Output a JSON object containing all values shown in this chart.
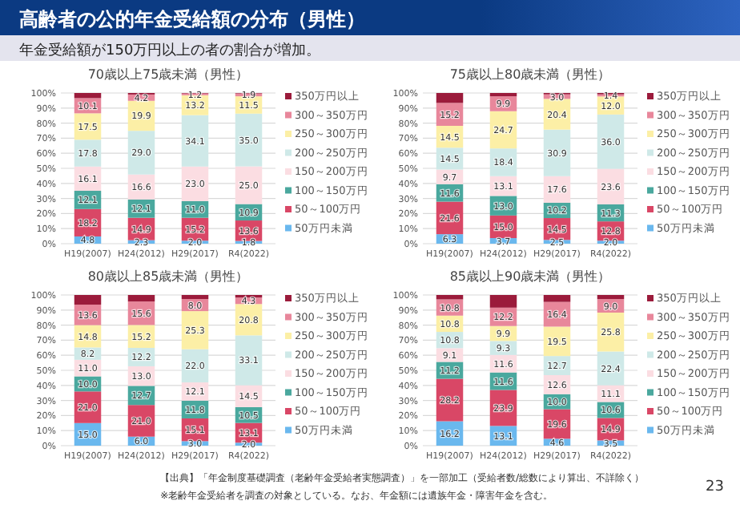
{
  "chart_data": [
    {
      "type": "other",
      "title": "高齢者の公的年金受給額の分布（男性）",
      "subtitle": "年金受給額が150万円以上の者の割合が増加。",
      "annotations": [
        "【出典】「年金制度基礎調査（老齢年金受給者実態調査）」を一部加工（受給者数/総数により算出、不詳除く）",
        "※老齢年金受給者を調査の対象としている。なお、年金額には遺族年金・障害年金を含む。",
        "23"
      ]
    },
    {
      "type": "bar",
      "stacked": true,
      "title": "70歳以上75歳未満（男性）",
      "categories": [
        "H19(2007)",
        "H24(2012)",
        "H29(2017)",
        "R4(2022)"
      ],
      "ylim": [
        0,
        100
      ],
      "yticks": [
        {
          "value": 0,
          "label": "0%"
        },
        {
          "value": 10,
          "label": "10%"
        },
        {
          "value": 20,
          "label": "20%"
        },
        {
          "value": 30,
          "label": "30%"
        },
        {
          "value": 40,
          "label": "40%"
        },
        {
          "value": 50,
          "label": "50%"
        },
        {
          "value": 60,
          "label": "60%"
        },
        {
          "value": 70,
          "label": "70%"
        },
        {
          "value": 80,
          "label": "80%"
        },
        {
          "value": 90,
          "label": "90%"
        },
        {
          "value": 100,
          "label": "100%"
        }
      ],
      "grid": "y",
      "legend": "right",
      "series": [
        {
          "name": "50万円未満",
          "color": "#6ab8ee",
          "values": [
            4.8,
            2.3,
            2.0,
            1.8
          ],
          "value_labels": [
            "4.8",
            "2.3",
            "2.0",
            "1.8"
          ]
        },
        {
          "name": "50～100万円",
          "color": "#d94766",
          "values": [
            18.2,
            14.9,
            15.2,
            13.6
          ],
          "value_labels": [
            "18.2",
            "14.9",
            "15.2",
            "13.6"
          ]
        },
        {
          "name": "100～150万円",
          "color": "#4aa89e",
          "values": [
            12.1,
            12.1,
            11.0,
            10.9
          ],
          "value_labels": [
            "12.1",
            "12.1",
            "11.0",
            "10.9"
          ]
        },
        {
          "name": "150～200万円",
          "color": "#fbdde2",
          "values": [
            16.1,
            16.6,
            23.0,
            25.0
          ],
          "value_labels": [
            "16.1",
            "16.6",
            "23.0",
            "25.0"
          ]
        },
        {
          "name": "200～250万円",
          "color": "#cfe9e8",
          "values": [
            17.8,
            29.0,
            34.1,
            35.0
          ],
          "value_labels": [
            "17.8",
            "29.0",
            "34.1",
            "35.0"
          ]
        },
        {
          "name": "250～300万円",
          "color": "#fcefa6",
          "values": [
            17.5,
            19.9,
            13.2,
            11.5
          ],
          "value_labels": [
            "17.5",
            "19.9",
            "13.2",
            "11.5"
          ]
        },
        {
          "name": "300～350万円",
          "color": "#e8879b",
          "values": [
            10.1,
            4.2,
            1.2,
            1.9
          ],
          "value_labels": [
            "10.1",
            "4.2",
            "1.2",
            "1.9"
          ]
        },
        {
          "name": "350万円以上",
          "color": "#9b1b3b",
          "values": [
            3.4,
            1.0,
            0.3,
            0.3
          ]
        }
      ]
    },
    {
      "type": "bar",
      "stacked": true,
      "title": "75歳以上80歳未満（男性）",
      "categories": [
        "H19(2007)",
        "H24(2012)",
        "H29(2017)",
        "R4(2022)"
      ],
      "ylim": [
        0,
        100
      ],
      "yticks": [
        {
          "value": 0,
          "label": "0%"
        },
        {
          "value": 10,
          "label": "10%"
        },
        {
          "value": 20,
          "label": "20%"
        },
        {
          "value": 30,
          "label": "30%"
        },
        {
          "value": 40,
          "label": "40%"
        },
        {
          "value": 50,
          "label": "50%"
        },
        {
          "value": 60,
          "label": "60%"
        },
        {
          "value": 70,
          "label": "70%"
        },
        {
          "value": 80,
          "label": "80%"
        },
        {
          "value": 90,
          "label": "90%"
        },
        {
          "value": 100,
          "label": "100%"
        }
      ],
      "grid": "y",
      "legend": "right",
      "series": [
        {
          "name": "50万円未満",
          "color": "#6ab8ee",
          "values": [
            6.3,
            3.7,
            2.5,
            2.0
          ],
          "value_labels": [
            "6.3",
            "3.7",
            "2.5",
            "2.0"
          ]
        },
        {
          "name": "50～100万円",
          "color": "#d94766",
          "values": [
            21.6,
            15.0,
            14.5,
            12.8
          ],
          "value_labels": [
            "21.6",
            "15.0",
            "14.5",
            "12.8"
          ]
        },
        {
          "name": "100～150万円",
          "color": "#4aa89e",
          "values": [
            11.6,
            13.0,
            10.2,
            11.3
          ],
          "value_labels": [
            "11.6",
            "13.0",
            "10.2",
            "11.3"
          ]
        },
        {
          "name": "150～200万円",
          "color": "#fbdde2",
          "values": [
            9.7,
            13.1,
            17.6,
            23.6
          ],
          "value_labels": [
            "9.7",
            "13.1",
            "17.6",
            "23.6"
          ]
        },
        {
          "name": "200～250万円",
          "color": "#cfe9e8",
          "values": [
            14.5,
            18.4,
            30.9,
            36.0
          ],
          "value_labels": [
            "14.5",
            "18.4",
            "30.9",
            "36.0"
          ]
        },
        {
          "name": "250～300万円",
          "color": "#fcefa6",
          "values": [
            14.5,
            24.7,
            20.4,
            12.0
          ],
          "value_labels": [
            "14.5",
            "24.7",
            "20.4",
            "12.0"
          ]
        },
        {
          "name": "300～350万円",
          "color": "#e8879b",
          "values": [
            15.2,
            9.9,
            3.0,
            1.4
          ],
          "value_labels": [
            "15.2",
            "9.9",
            "3.0",
            "1.4"
          ]
        },
        {
          "name": "350万円以上",
          "color": "#9b1b3b",
          "values": [
            6.6,
            2.2,
            0.9,
            0.9
          ]
        }
      ]
    },
    {
      "type": "bar",
      "stacked": true,
      "title": "80歳以上85歳未満（男性）",
      "categories": [
        "H19(2007)",
        "H24(2012)",
        "H29(2017)",
        "R4(2022)"
      ],
      "ylim": [
        0,
        100
      ],
      "yticks": [
        {
          "value": 0,
          "label": "0%"
        },
        {
          "value": 10,
          "label": "10%"
        },
        {
          "value": 20,
          "label": "20%"
        },
        {
          "value": 30,
          "label": "30%"
        },
        {
          "value": 40,
          "label": "40%"
        },
        {
          "value": 50,
          "label": "50%"
        },
        {
          "value": 60,
          "label": "60%"
        },
        {
          "value": 70,
          "label": "70%"
        },
        {
          "value": 80,
          "label": "80%"
        },
        {
          "value": 90,
          "label": "90%"
        },
        {
          "value": 100,
          "label": "100%"
        }
      ],
      "grid": "y",
      "legend": "right",
      "series": [
        {
          "name": "50万円未満",
          "color": "#6ab8ee",
          "values": [
            15.0,
            6.0,
            3.0,
            2.0
          ],
          "value_labels": [
            "15.0",
            "6.0",
            "3.0",
            "2.0"
          ]
        },
        {
          "name": "50～100万円",
          "color": "#d94766",
          "values": [
            21.0,
            21.0,
            15.1,
            13.1
          ],
          "value_labels": [
            "21.0",
            "21.0",
            "15.1",
            "13.1"
          ]
        },
        {
          "name": "100～150万円",
          "color": "#4aa89e",
          "values": [
            10.0,
            12.7,
            11.8,
            10.5
          ],
          "value_labels": [
            "10.0",
            "12.7",
            "11.8",
            "10.5"
          ]
        },
        {
          "name": "150～200万円",
          "color": "#fbdde2",
          "values": [
            11.0,
            13.0,
            12.1,
            14.5
          ],
          "value_labels": [
            "11.0",
            "13.0",
            "12.1",
            "14.5"
          ]
        },
        {
          "name": "200～250万円",
          "color": "#cfe9e8",
          "values": [
            8.2,
            12.2,
            22.0,
            33.1
          ],
          "value_labels": [
            "8.2",
            "12.2",
            "22.0",
            "33.1"
          ]
        },
        {
          "name": "250～300万円",
          "color": "#fcefa6",
          "values": [
            14.8,
            15.2,
            25.3,
            20.8
          ],
          "value_labels": [
            "14.8",
            "15.2",
            "25.3",
            "20.8"
          ]
        },
        {
          "name": "300～350万円",
          "color": "#e8879b",
          "values": [
            13.6,
            15.6,
            8.0,
            4.3
          ],
          "value_labels": [
            "13.6",
            "15.6",
            "8.0",
            "4.3"
          ]
        },
        {
          "name": "350万円以上",
          "color": "#9b1b3b",
          "values": [
            6.4,
            4.3,
            2.7,
            1.7
          ]
        }
      ]
    },
    {
      "type": "bar",
      "stacked": true,
      "title": "85歳以上90歳未満（男性）",
      "categories": [
        "H19(2007)",
        "H24(2012)",
        "H29(2017)",
        "R4(2022)"
      ],
      "ylim": [
        0,
        100
      ],
      "yticks": [
        {
          "value": 0,
          "label": "0%"
        },
        {
          "value": 10,
          "label": "10%"
        },
        {
          "value": 20,
          "label": "20%"
        },
        {
          "value": 30,
          "label": "30%"
        },
        {
          "value": 40,
          "label": "40%"
        },
        {
          "value": 50,
          "label": "50%"
        },
        {
          "value": 60,
          "label": "60%"
        },
        {
          "value": 70,
          "label": "70%"
        },
        {
          "value": 80,
          "label": "80%"
        },
        {
          "value": 90,
          "label": "90%"
        },
        {
          "value": 100,
          "label": "100%"
        }
      ],
      "grid": "y",
      "legend": "right",
      "series": [
        {
          "name": "50万円未満",
          "color": "#6ab8ee",
          "values": [
            16.2,
            13.1,
            4.6,
            3.5
          ],
          "value_labels": [
            "16.2",
            "13.1",
            "4.6",
            "3.5"
          ]
        },
        {
          "name": "50～100万円",
          "color": "#d94766",
          "values": [
            28.2,
            23.9,
            19.6,
            14.9
          ],
          "value_labels": [
            "28.2",
            "23.9",
            "19.6",
            "14.9"
          ]
        },
        {
          "name": "100～150万円",
          "color": "#4aa89e",
          "values": [
            11.2,
            11.6,
            10.0,
            10.6
          ],
          "value_labels": [
            "11.2",
            "11.6",
            "10.0",
            "10.6"
          ]
        },
        {
          "name": "150～200万円",
          "color": "#fbdde2",
          "values": [
            9.1,
            11.6,
            12.6,
            11.1
          ],
          "value_labels": [
            "9.1",
            "11.6",
            "12.6",
            "11.1"
          ]
        },
        {
          "name": "200～250万円",
          "color": "#cfe9e8",
          "values": [
            10.8,
            9.3,
            12.7,
            22.4
          ],
          "value_labels": [
            "10.8",
            "9.3",
            "12.7",
            "22.4"
          ]
        },
        {
          "name": "250～300万円",
          "color": "#fcefa6",
          "values": [
            10.8,
            9.9,
            19.5,
            25.8
          ],
          "value_labels": [
            "10.8",
            "9.9",
            "19.5",
            "25.8"
          ]
        },
        {
          "name": "300～350万円",
          "color": "#e8879b",
          "values": [
            10.8,
            12.2,
            16.4,
            9.0
          ],
          "value_labels": [
            "10.8",
            "12.2",
            "16.4",
            "9.0"
          ]
        },
        {
          "name": "350万円以上",
          "color": "#9b1b3b",
          "values": [
            2.9,
            8.4,
            4.6,
            2.7
          ]
        }
      ]
    }
  ]
}
